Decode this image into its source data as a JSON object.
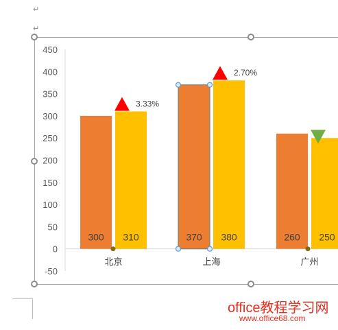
{
  "doc": {
    "para_mark": "↵",
    "colors": {
      "frame": "#a6a6a6",
      "selected_handle": "#5b9bd5",
      "point_handle": "#8a6a10"
    }
  },
  "watermark": {
    "title": "office教程学习网",
    "url": "www.office68.com"
  },
  "chart_data": {
    "type": "bar",
    "categories": [
      "北京",
      "上海",
      "广州"
    ],
    "ylim": [
      -50,
      450
    ],
    "yticks": [
      -50,
      0,
      50,
      100,
      150,
      200,
      250,
      300,
      350,
      400,
      450
    ],
    "series": [
      {
        "values": [
          300,
          370,
          260
        ],
        "color": "#ed7d31"
      },
      {
        "values": [
          310,
          380,
          250
        ],
        "color": "#ffc000"
      }
    ],
    "changes": [
      {
        "label": "3.33%",
        "direction": "up",
        "color": "#ff0000"
      },
      {
        "label": "2.70%",
        "direction": "up",
        "color": "#ff0000"
      },
      {
        "label": "",
        "direction": "down",
        "color": "#70ad47"
      }
    ],
    "selected_point": {
      "series": 0,
      "category": 1
    }
  }
}
